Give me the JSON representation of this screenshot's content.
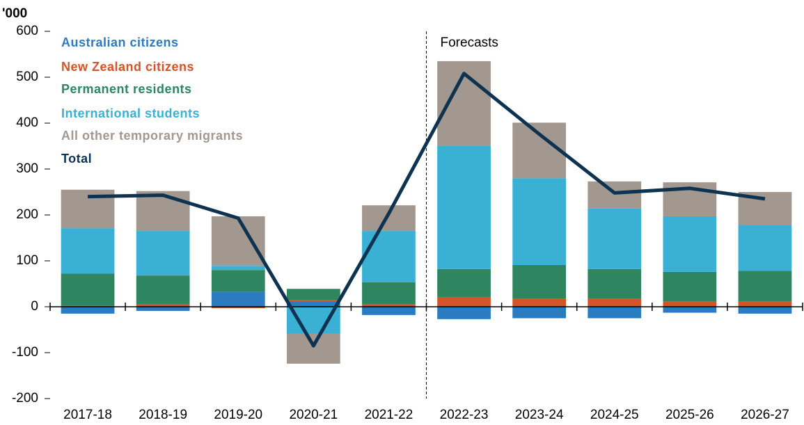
{
  "chart_data": {
    "type": "stacked-bar-line",
    "y_label": "'000",
    "annotation": "Forecasts",
    "categories": [
      "2017-18",
      "2018-19",
      "2019-20",
      "2020-21",
      "2021-22",
      "2022-23",
      "2023-24",
      "2024-25",
      "2025-26",
      "2026-27"
    ],
    "series": [
      {
        "name": "Australian citizens",
        "color": "#2a7bc0",
        "values": [
          -15,
          -9,
          32,
          12,
          -18,
          -27,
          -25,
          -25,
          -13,
          -15
        ]
      },
      {
        "name": "New Zealand citizens",
        "color": "#d4542a",
        "values": [
          3,
          6,
          -3,
          2,
          5,
          20,
          17,
          17,
          12,
          12
        ]
      },
      {
        "name": "Permanent residents",
        "color": "#2e8560",
        "values": [
          69,
          62,
          48,
          25,
          48,
          62,
          74,
          65,
          64,
          66
        ]
      },
      {
        "name": "International students",
        "color": "#3ab0d4",
        "values": [
          99,
          97,
          9,
          -59,
          112,
          268,
          189,
          132,
          121,
          100
        ]
      },
      {
        "name": "All other temporary migrants",
        "color": "#a39890",
        "values": [
          84,
          87,
          108,
          -65,
          56,
          185,
          121,
          59,
          74,
          72
        ]
      }
    ],
    "line": {
      "name": "Total",
      "color": "#0d3350",
      "values": [
        240,
        243,
        193,
        -85,
        203,
        508,
        376,
        248,
        258,
        235
      ]
    },
    "ylim": [
      -200,
      600
    ],
    "yticks": [
      -200,
      -100,
      0,
      100,
      200,
      300,
      400,
      500,
      600
    ]
  }
}
